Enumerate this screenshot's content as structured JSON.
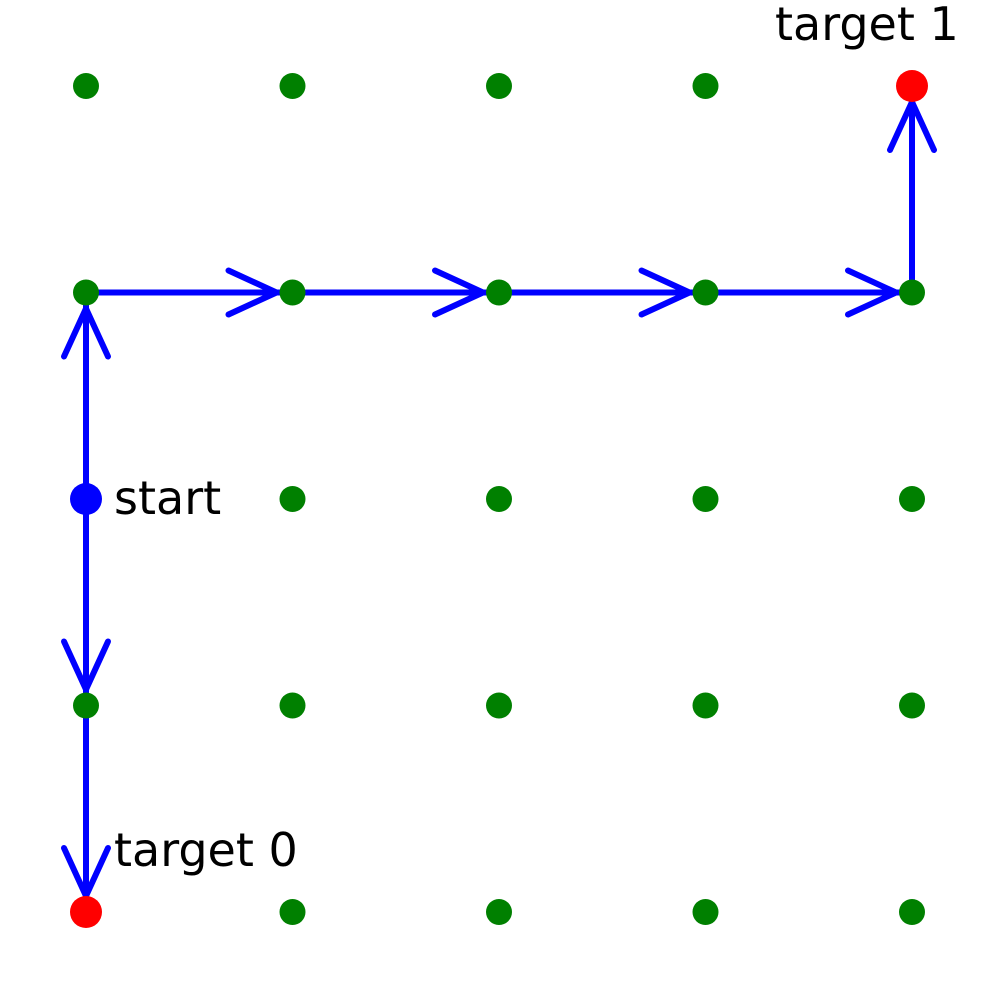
{
  "grid": {
    "columns": 5,
    "rows": 5
  },
  "colors": {
    "node": "#008000",
    "target": "#ff0000",
    "start": "#0000ff",
    "path": "#0000ff",
    "text": "#000000"
  },
  "start": {
    "col": 0,
    "row": 2
  },
  "targets": [
    {
      "col": 0,
      "row": 4
    },
    {
      "col": 4,
      "row": 0
    }
  ],
  "labels": {
    "start": "start",
    "target0": "target 0",
    "target1": "target 1"
  },
  "arrows": [
    {
      "from": {
        "col": 0,
        "row": 2
      },
      "to": {
        "col": 0,
        "row": 3
      }
    },
    {
      "from": {
        "col": 0,
        "row": 3
      },
      "to": {
        "col": 0,
        "row": 4
      }
    },
    {
      "from": {
        "col": 0,
        "row": 2
      },
      "to": {
        "col": 0,
        "row": 1
      }
    },
    {
      "from": {
        "col": 0,
        "row": 1
      },
      "to": {
        "col": 1,
        "row": 1
      }
    },
    {
      "from": {
        "col": 1,
        "row": 1
      },
      "to": {
        "col": 2,
        "row": 1
      }
    },
    {
      "from": {
        "col": 2,
        "row": 1
      },
      "to": {
        "col": 3,
        "row": 1
      }
    },
    {
      "from": {
        "col": 3,
        "row": 1
      },
      "to": {
        "col": 4,
        "row": 1
      }
    },
    {
      "from": {
        "col": 4,
        "row": 1
      },
      "to": {
        "col": 4,
        "row": 0
      }
    }
  ]
}
